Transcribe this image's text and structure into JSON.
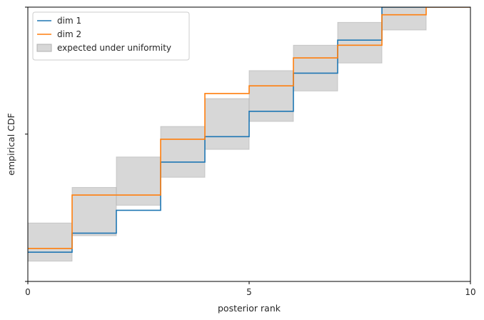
{
  "chart_data": {
    "type": "line",
    "xlabel": "posterior rank",
    "ylabel": "empirical CDF",
    "xlim": [
      0,
      10
    ],
    "ylim": [
      -0.08,
      1.0
    ],
    "xticks": [
      0,
      5,
      10
    ],
    "x_tick_labels": [
      "0",
      "5",
      "10"
    ],
    "yticks": [
      0.5
    ],
    "y_tick_labels": [],
    "grid": false,
    "legend_position": "top-left",
    "band": {
      "name": "expected under uniformity",
      "color": "#b0b0b0",
      "lower": [
        0.0,
        0.1,
        0.22,
        0.33,
        0.44,
        0.55,
        0.67,
        0.78,
        0.91,
        1.0
      ],
      "upper": [
        0.15,
        0.29,
        0.41,
        0.53,
        0.64,
        0.75,
        0.85,
        0.94,
        1.0,
        1.0
      ]
    },
    "series": [
      {
        "name": "dim 1",
        "color": "#1f77b4",
        "step_x": [
          0,
          1,
          2,
          3,
          4,
          5,
          6,
          7,
          8,
          9,
          10
        ],
        "step_y": [
          0.035,
          0.11,
          0.2,
          0.39,
          0.49,
          0.59,
          0.74,
          0.87,
          1.0,
          1.0
        ]
      },
      {
        "name": "dim 2",
        "color": "#ff7f0e",
        "step_x": [
          0,
          1,
          2,
          3,
          4,
          5,
          6,
          7,
          8,
          9,
          10
        ],
        "step_y": [
          0.05,
          0.26,
          0.26,
          0.48,
          0.66,
          0.69,
          0.8,
          0.85,
          0.97,
          1.0
        ]
      }
    ]
  }
}
